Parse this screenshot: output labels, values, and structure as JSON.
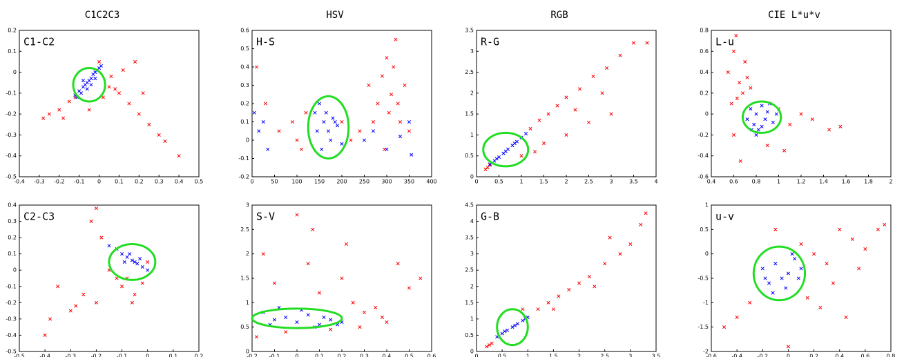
{
  "column_titles": [
    "C1C2C3",
    "HSV",
    "RGB",
    "CIE L*u*v"
  ],
  "chart_data": [
    {
      "type": "scatter",
      "title": "C1-C2",
      "xlim": [
        -0.4,
        0.5
      ],
      "xticks": [
        -0.4,
        -0.3,
        -0.2,
        -0.1,
        0,
        0.1,
        0.2,
        0.3,
        0.4,
        0.5
      ],
      "ylim": [
        -0.5,
        0.2
      ],
      "yticks": [
        -0.5,
        -0.4,
        -0.3,
        -0.2,
        -0.1,
        0,
        0.1,
        0.2
      ],
      "series": [
        {
          "color": "#ff0000",
          "x": [
            -0.25,
            -0.2,
            -0.15,
            -0.12,
            -0.18,
            0.05,
            0.08,
            0.1,
            0.15,
            0.2,
            0.25,
            0.3,
            0.33,
            0.4,
            0.02,
            0.0,
            0.12,
            -0.05,
            0.18,
            0.22,
            0.06,
            -0.28
          ],
          "y": [
            -0.2,
            -0.18,
            -0.14,
            -0.12,
            -0.22,
            -0.07,
            -0.08,
            -0.1,
            -0.15,
            -0.2,
            -0.25,
            -0.3,
            -0.33,
            -0.4,
            -0.12,
            0.05,
            0.01,
            -0.18,
            0.05,
            -0.1,
            -0.02,
            -0.22
          ]
        },
        {
          "color": "#0000ff",
          "x": [
            -0.12,
            -0.1,
            -0.09,
            -0.08,
            -0.07,
            -0.06,
            -0.05,
            -0.04,
            -0.03,
            -0.02,
            -0.01,
            0.0,
            0.01,
            -0.11,
            -0.06,
            -0.04,
            -0.08,
            -0.02
          ],
          "y": [
            -0.11,
            -0.09,
            -0.1,
            -0.07,
            -0.06,
            -0.05,
            -0.04,
            -0.03,
            -0.01,
            0.0,
            0.01,
            0.02,
            0.03,
            -0.12,
            -0.08,
            -0.06,
            -0.04,
            -0.03
          ]
        }
      ],
      "ellipse": {
        "cx": -0.05,
        "cy": -0.06,
        "rx": 0.08,
        "ry": 0.08,
        "color": "#22dd22"
      }
    },
    {
      "type": "scatter",
      "title": "H-S",
      "xlim": [
        0,
        400
      ],
      "xticks": [
        0,
        50,
        100,
        150,
        200,
        250,
        300,
        350,
        400
      ],
      "ylim": [
        -0.2,
        0.6
      ],
      "yticks": [
        -0.2,
        -0.1,
        0,
        0.1,
        0.2,
        0.3,
        0.4,
        0.5,
        0.6
      ],
      "series": [
        {
          "color": "#ff0000",
          "x": [
            10,
            30,
            60,
            90,
            110,
            120,
            200,
            220,
            240,
            260,
            280,
            290,
            300,
            310,
            320,
            330,
            340,
            350,
            305,
            315,
            325,
            295,
            270,
            100
          ],
          "y": [
            0.4,
            0.2,
            0.05,
            0.1,
            -0.05,
            0.15,
            0.1,
            0.0,
            0.05,
            0.3,
            0.2,
            0.35,
            0.45,
            0.25,
            0.55,
            0.1,
            0.3,
            0.05,
            0.15,
            0.4,
            0.2,
            -0.05,
            0.1,
            0.0
          ]
        },
        {
          "color": "#0000ff",
          "x": [
            5,
            15,
            25,
            35,
            140,
            150,
            160,
            170,
            175,
            180,
            190,
            200,
            155,
            165,
            185,
            250,
            270,
            300,
            330,
            350,
            355,
            145
          ],
          "y": [
            0.15,
            0.05,
            0.1,
            -0.05,
            0.15,
            0.2,
            0.1,
            0.05,
            0.0,
            0.12,
            0.08,
            -0.02,
            -0.05,
            0.15,
            0.1,
            0.0,
            0.05,
            -0.05,
            0.02,
            0.1,
            -0.08,
            0.05
          ]
        }
      ],
      "ellipse": {
        "cx": 170,
        "cy": 0.07,
        "rx": 45,
        "ry": 0.17,
        "color": "#22dd22"
      }
    },
    {
      "type": "scatter",
      "title": "R-G",
      "xlim": [
        0,
        4
      ],
      "xticks": [
        0,
        0.5,
        1,
        1.5,
        2,
        2.5,
        3,
        3.5,
        4
      ],
      "ylim": [
        0,
        3.5
      ],
      "yticks": [
        0,
        0.5,
        1,
        1.5,
        2,
        2.5,
        3,
        3.5
      ],
      "series": [
        {
          "color": "#ff0000",
          "x": [
            0.2,
            0.25,
            0.3,
            1.2,
            1.4,
            1.6,
            1.8,
            2.0,
            2.3,
            2.6,
            2.9,
            3.2,
            3.5,
            3.8,
            1.5,
            2.0,
            2.5,
            3.0,
            1.0,
            1.3,
            2.2,
            2.8
          ],
          "y": [
            0.18,
            0.22,
            0.28,
            1.15,
            1.35,
            1.5,
            1.7,
            1.9,
            2.1,
            2.4,
            2.6,
            2.9,
            3.2,
            3.2,
            0.8,
            1.0,
            1.3,
            1.5,
            0.5,
            0.6,
            1.6,
            2.0
          ]
        },
        {
          "color": "#0000ff",
          "x": [
            0.3,
            0.4,
            0.5,
            0.6,
            0.7,
            0.8,
            0.9,
            1.0,
            1.1,
            0.45,
            0.65,
            0.85
          ],
          "y": [
            0.3,
            0.38,
            0.47,
            0.56,
            0.66,
            0.75,
            0.84,
            0.94,
            1.03,
            0.43,
            0.61,
            0.8
          ]
        }
      ],
      "ellipse": {
        "cx": 0.65,
        "cy": 0.65,
        "rx": 0.5,
        "ry": 0.4,
        "color": "#22dd22"
      }
    },
    {
      "type": "scatter",
      "title": "L-u",
      "xlim": [
        0.4,
        2
      ],
      "xticks": [
        0.4,
        0.6,
        0.8,
        1,
        1.2,
        1.4,
        1.6,
        1.8,
        2
      ],
      "ylim": [
        -0.6,
        0.8
      ],
      "yticks": [
        -0.6,
        -0.4,
        -0.2,
        0,
        0.2,
        0.4,
        0.6,
        0.8
      ],
      "series": [
        {
          "color": "#ff0000",
          "x": [
            0.55,
            0.6,
            0.62,
            0.65,
            0.68,
            0.7,
            0.75,
            0.58,
            0.63,
            1.0,
            1.1,
            1.2,
            1.3,
            1.45,
            1.55,
            0.9,
            0.66,
            0.72,
            0.6,
            1.05
          ],
          "y": [
            0.4,
            0.6,
            0.75,
            0.3,
            0.2,
            0.5,
            0.25,
            0.1,
            0.15,
            0.05,
            -0.1,
            0.0,
            -0.05,
            -0.15,
            -0.12,
            -0.3,
            -0.45,
            0.35,
            -0.2,
            -0.35
          ]
        },
        {
          "color": "#0000ff",
          "x": [
            0.72,
            0.75,
            0.78,
            0.8,
            0.82,
            0.85,
            0.88,
            0.9,
            0.95,
            0.98,
            0.8,
            0.85,
            0.76,
            0.92
          ],
          "y": [
            -0.05,
            0.05,
            -0.1,
            0.0,
            -0.15,
            0.08,
            -0.05,
            0.02,
            -0.08,
            0.0,
            -0.2,
            -0.12,
            -0.15,
            0.1
          ]
        }
      ],
      "ellipse": {
        "cx": 0.85,
        "cy": -0.03,
        "rx": 0.17,
        "ry": 0.15,
        "color": "#22dd22"
      }
    },
    {
      "type": "scatter",
      "title": "C2-C3",
      "xlim": [
        -0.5,
        0.2
      ],
      "xticks": [
        -0.5,
        -0.4,
        -0.3,
        -0.2,
        -0.1,
        0,
        0.1,
        0.2
      ],
      "ylim": [
        -0.5,
        0.4
      ],
      "yticks": [
        -0.5,
        -0.4,
        -0.3,
        -0.2,
        -0.1,
        0,
        0.1,
        0.2,
        0.3,
        0.4
      ],
      "series": [
        {
          "color": "#ff0000",
          "x": [
            -0.22,
            -0.2,
            -0.18,
            -0.3,
            -0.35,
            -0.25,
            -0.4,
            -0.38,
            -0.12,
            -0.1,
            -0.08,
            -0.05,
            -0.02,
            0.0,
            -0.15,
            -0.28,
            -0.2,
            -0.06
          ],
          "y": [
            0.3,
            0.38,
            0.2,
            -0.25,
            -0.1,
            -0.15,
            -0.4,
            -0.3,
            -0.05,
            -0.1,
            -0.05,
            -0.15,
            -0.08,
            0.05,
            0.0,
            -0.22,
            -0.2,
            -0.2
          ]
        },
        {
          "color": "#0000ff",
          "x": [
            -0.15,
            -0.12,
            -0.1,
            -0.08,
            -0.06,
            -0.05,
            -0.04,
            -0.02,
            0.0,
            -0.07,
            -0.03,
            -0.09
          ],
          "y": [
            0.15,
            0.13,
            0.1,
            0.08,
            0.06,
            0.05,
            0.04,
            0.02,
            0.0,
            0.1,
            0.07,
            0.05
          ]
        }
      ],
      "ellipse": {
        "cx": -0.06,
        "cy": 0.05,
        "rx": 0.09,
        "ry": 0.11,
        "color": "#22dd22"
      }
    },
    {
      "type": "scatter",
      "title": "S-V",
      "xlim": [
        -0.2,
        0.6
      ],
      "xticks": [
        -0.2,
        -0.1,
        0,
        0.1,
        0.2,
        0.3,
        0.4,
        0.5,
        0.6
      ],
      "ylim": [
        0,
        3
      ],
      "yticks": [
        0,
        0.5,
        1,
        1.5,
        2,
        2.5,
        3
      ],
      "series": [
        {
          "color": "#ff0000",
          "x": [
            -0.15,
            -0.1,
            0.0,
            0.05,
            0.1,
            0.2,
            0.25,
            0.3,
            0.35,
            0.4,
            0.5,
            0.55,
            -0.05,
            0.15,
            0.28,
            0.45,
            -0.18,
            0.07,
            0.22,
            0.38
          ],
          "y": [
            2.0,
            1.4,
            2.8,
            1.8,
            1.2,
            1.5,
            1.0,
            0.8,
            0.9,
            0.6,
            1.3,
            1.5,
            0.4,
            0.45,
            0.5,
            1.8,
            0.3,
            2.5,
            2.2,
            0.7
          ]
        },
        {
          "color": "#0000ff",
          "x": [
            -0.15,
            -0.1,
            -0.05,
            0.0,
            0.05,
            0.1,
            0.15,
            0.2,
            -0.12,
            0.02,
            0.08,
            0.12,
            -0.08,
            0.18
          ],
          "y": [
            0.8,
            0.65,
            0.7,
            0.6,
            0.75,
            0.55,
            0.65,
            0.6,
            0.55,
            0.85,
            0.5,
            0.7,
            0.9,
            0.55
          ]
        }
      ],
      "ellipse": {
        "cx": 0.0,
        "cy": 0.68,
        "rx": 0.2,
        "ry": 0.2,
        "color": "#22dd22"
      }
    },
    {
      "type": "scatter",
      "title": "G-B",
      "xlim": [
        0,
        3.5
      ],
      "xticks": [
        0,
        0.5,
        1,
        1.5,
        2,
        2.5,
        3,
        3.5
      ],
      "ylim": [
        0,
        4.5
      ],
      "yticks": [
        0,
        0.5,
        1,
        1.5,
        2,
        2.5,
        3,
        3.5,
        4,
        4.5
      ],
      "series": [
        {
          "color": "#ff0000",
          "x": [
            0.2,
            0.25,
            0.3,
            1.2,
            1.4,
            1.6,
            1.8,
            2.0,
            2.2,
            2.5,
            2.8,
            3.0,
            3.3,
            1.5,
            2.3,
            2.6,
            0.9,
            3.2
          ],
          "y": [
            0.15,
            0.2,
            0.25,
            1.3,
            1.5,
            1.7,
            1.9,
            2.1,
            2.3,
            2.7,
            3.0,
            3.3,
            4.25,
            1.3,
            2.0,
            3.5,
            1.3,
            3.9
          ]
        },
        {
          "color": "#0000ff",
          "x": [
            0.4,
            0.5,
            0.6,
            0.7,
            0.8,
            0.9,
            1.0,
            0.55,
            0.75,
            0.95
          ],
          "y": [
            0.45,
            0.55,
            0.65,
            0.75,
            0.85,
            0.95,
            1.05,
            0.62,
            0.8,
            1.0
          ]
        }
      ],
      "ellipse": {
        "cx": 0.7,
        "cy": 0.75,
        "rx": 0.3,
        "ry": 0.55,
        "color": "#22dd22"
      }
    },
    {
      "type": "scatter",
      "title": "u-v",
      "xlim": [
        -0.6,
        0.8
      ],
      "xticks": [
        -0.6,
        -0.4,
        -0.2,
        0,
        0.2,
        0.4,
        0.6,
        0.8
      ],
      "ylim": [
        -2,
        1
      ],
      "yticks": [
        -2,
        -1.5,
        -1,
        -0.5,
        0,
        0.5,
        1
      ],
      "series": [
        {
          "color": "#ff0000",
          "x": [
            0.1,
            0.2,
            0.3,
            0.4,
            0.5,
            0.6,
            0.7,
            0.75,
            -0.3,
            -0.4,
            -0.5,
            0.15,
            0.25,
            0.35,
            0.45,
            0.0,
            -0.1,
            0.55
          ],
          "y": [
            0.2,
            0.0,
            -0.2,
            0.5,
            0.3,
            0.1,
            0.5,
            0.6,
            -1.0,
            -1.3,
            -1.5,
            -0.9,
            -1.1,
            -0.6,
            -1.3,
            -1.9,
            0.5,
            -0.3
          ]
        },
        {
          "color": "#0000ff",
          "x": [
            -0.2,
            -0.15,
            -0.1,
            -0.05,
            0.0,
            0.05,
            0.1,
            -0.12,
            -0.02,
            0.08,
            -0.18,
            0.03
          ],
          "y": [
            -0.3,
            -0.6,
            -0.2,
            -0.5,
            -0.4,
            -0.1,
            -0.3,
            -0.8,
            -0.7,
            -0.5,
            -0.5,
            0.0
          ]
        }
      ],
      "ellipse": {
        "cx": -0.07,
        "cy": -0.4,
        "rx": 0.2,
        "ry": 0.55,
        "color": "#22dd22"
      }
    }
  ]
}
